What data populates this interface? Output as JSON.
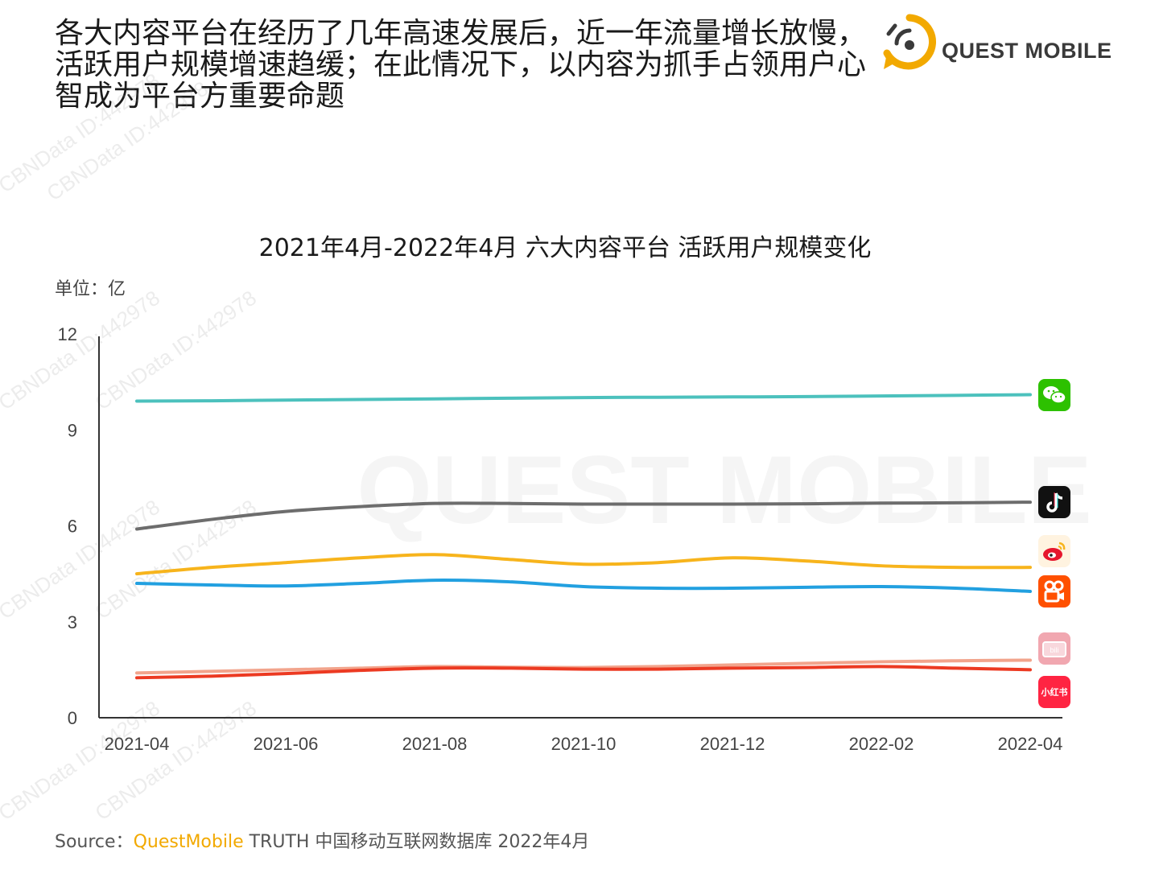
{
  "headline": {
    "line1": "各大内容平台在经历了几年高速发展后，近一年流量增长放慢，",
    "line2": "活跃用户规模增速趋缓；在此情况下，以内容为抓手占领用户心",
    "line3": "智成为平台方重要命题"
  },
  "logo": {
    "text": "QUEST MOBILE",
    "accent": "#f2a900"
  },
  "watermark_text": "CBNData ID:442978",
  "background_watermark": "QUEST MOBILE",
  "source": {
    "prefix": "Source：",
    "brand": "QuestMobile",
    "rest": " TRUTH 中国移动互联网数据库 2022年4月"
  },
  "icons": {
    "wechat": "wechat-icon",
    "douyin": "douyin-icon",
    "weibo": "weibo-icon",
    "kuaishou": "kuaishou-icon",
    "bilibili": "bilibili-icon",
    "xiaohongshu": "xiaohongshu-icon",
    "xiaohongshu_label": "小红书"
  },
  "chart_data": {
    "type": "line",
    "title": "2021年4月-2022年4月 六大内容平台 活跃用户规模变化",
    "unit_label": "单位：亿",
    "xlabel": "",
    "ylabel": "",
    "ylim": [
      0,
      12
    ],
    "yticks": [
      "0",
      "3",
      "6",
      "9",
      "12"
    ],
    "x": [
      "2021-04",
      "2021-05",
      "2021-06",
      "2021-07",
      "2021-08",
      "2021-09",
      "2021-10",
      "2021-11",
      "2021-12",
      "2022-01",
      "2022-02",
      "2022-03",
      "2022-04"
    ],
    "xtick_labels": [
      "2021-04",
      "2021-06",
      "2021-08",
      "2021-10",
      "2021-12",
      "2022-02",
      "2022-04"
    ],
    "grid": false,
    "legend": "icons at line ends (right)",
    "series": [
      {
        "icon": "wechat-icon",
        "color": "#4cc1bd",
        "values": [
          9.9,
          9.91,
          9.93,
          9.95,
          9.97,
          9.99,
          10.01,
          10.02,
          10.03,
          10.04,
          10.06,
          10.08,
          10.1
        ]
      },
      {
        "icon": "douyin-icon",
        "color": "#6d6d6d",
        "values": [
          5.9,
          6.2,
          6.45,
          6.6,
          6.7,
          6.7,
          6.68,
          6.68,
          6.68,
          6.69,
          6.71,
          6.72,
          6.74
        ]
      },
      {
        "icon": "weibo-icon",
        "color": "#f7b41c",
        "values": [
          4.5,
          4.7,
          4.85,
          5.0,
          5.1,
          4.95,
          4.8,
          4.85,
          5.0,
          4.9,
          4.75,
          4.7,
          4.7
        ]
      },
      {
        "icon": "kuaishou-icon",
        "color": "#22a0e0",
        "values": [
          4.2,
          4.15,
          4.12,
          4.2,
          4.3,
          4.25,
          4.1,
          4.05,
          4.05,
          4.08,
          4.1,
          4.05,
          3.95
        ]
      },
      {
        "icon": "bilibili-icon",
        "color": "#f2a48c",
        "values": [
          1.4,
          1.45,
          1.5,
          1.55,
          1.6,
          1.58,
          1.57,
          1.6,
          1.65,
          1.7,
          1.75,
          1.78,
          1.8
        ]
      },
      {
        "icon": "xiaohongshu-icon",
        "color": "#ec3a22",
        "values": [
          1.25,
          1.3,
          1.38,
          1.48,
          1.55,
          1.55,
          1.52,
          1.52,
          1.55,
          1.57,
          1.6,
          1.55,
          1.5
        ]
      }
    ]
  }
}
